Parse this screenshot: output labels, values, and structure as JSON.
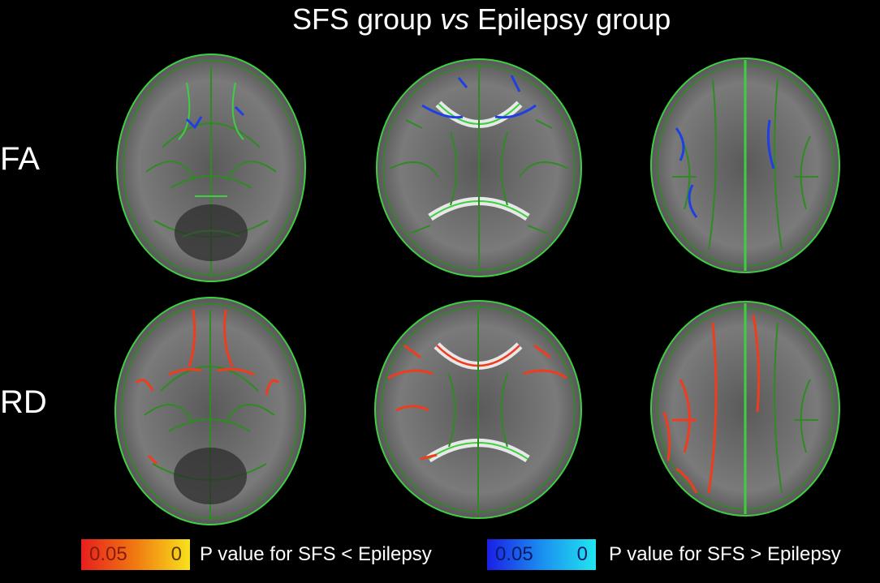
{
  "title": {
    "part1": "SFS group ",
    "part2": "vs",
    "part3": " Epilepsy group"
  },
  "rows": [
    {
      "label": "FA",
      "highlight_color": "#1f3fe6"
    },
    {
      "label": "RD",
      "highlight_color": "#f03c1e"
    }
  ],
  "legend": {
    "red": {
      "min": "0.05",
      "max": "0",
      "text": "P value for SFS < Epilepsy",
      "gradient": [
        "#e81e1e",
        "#f07a10",
        "#f8e21c"
      ]
    },
    "blue": {
      "min": "0.05",
      "max": "0",
      "text": "P value for SFS > Epilepsy",
      "gradient": [
        "#1a1ee6",
        "#1a8ef0",
        "#21e6f0"
      ]
    }
  },
  "colors": {
    "skeleton": "#2e8b22",
    "mean_fa": "#3cd040",
    "brain": "#6f6f6f",
    "background": "#000000"
  }
}
